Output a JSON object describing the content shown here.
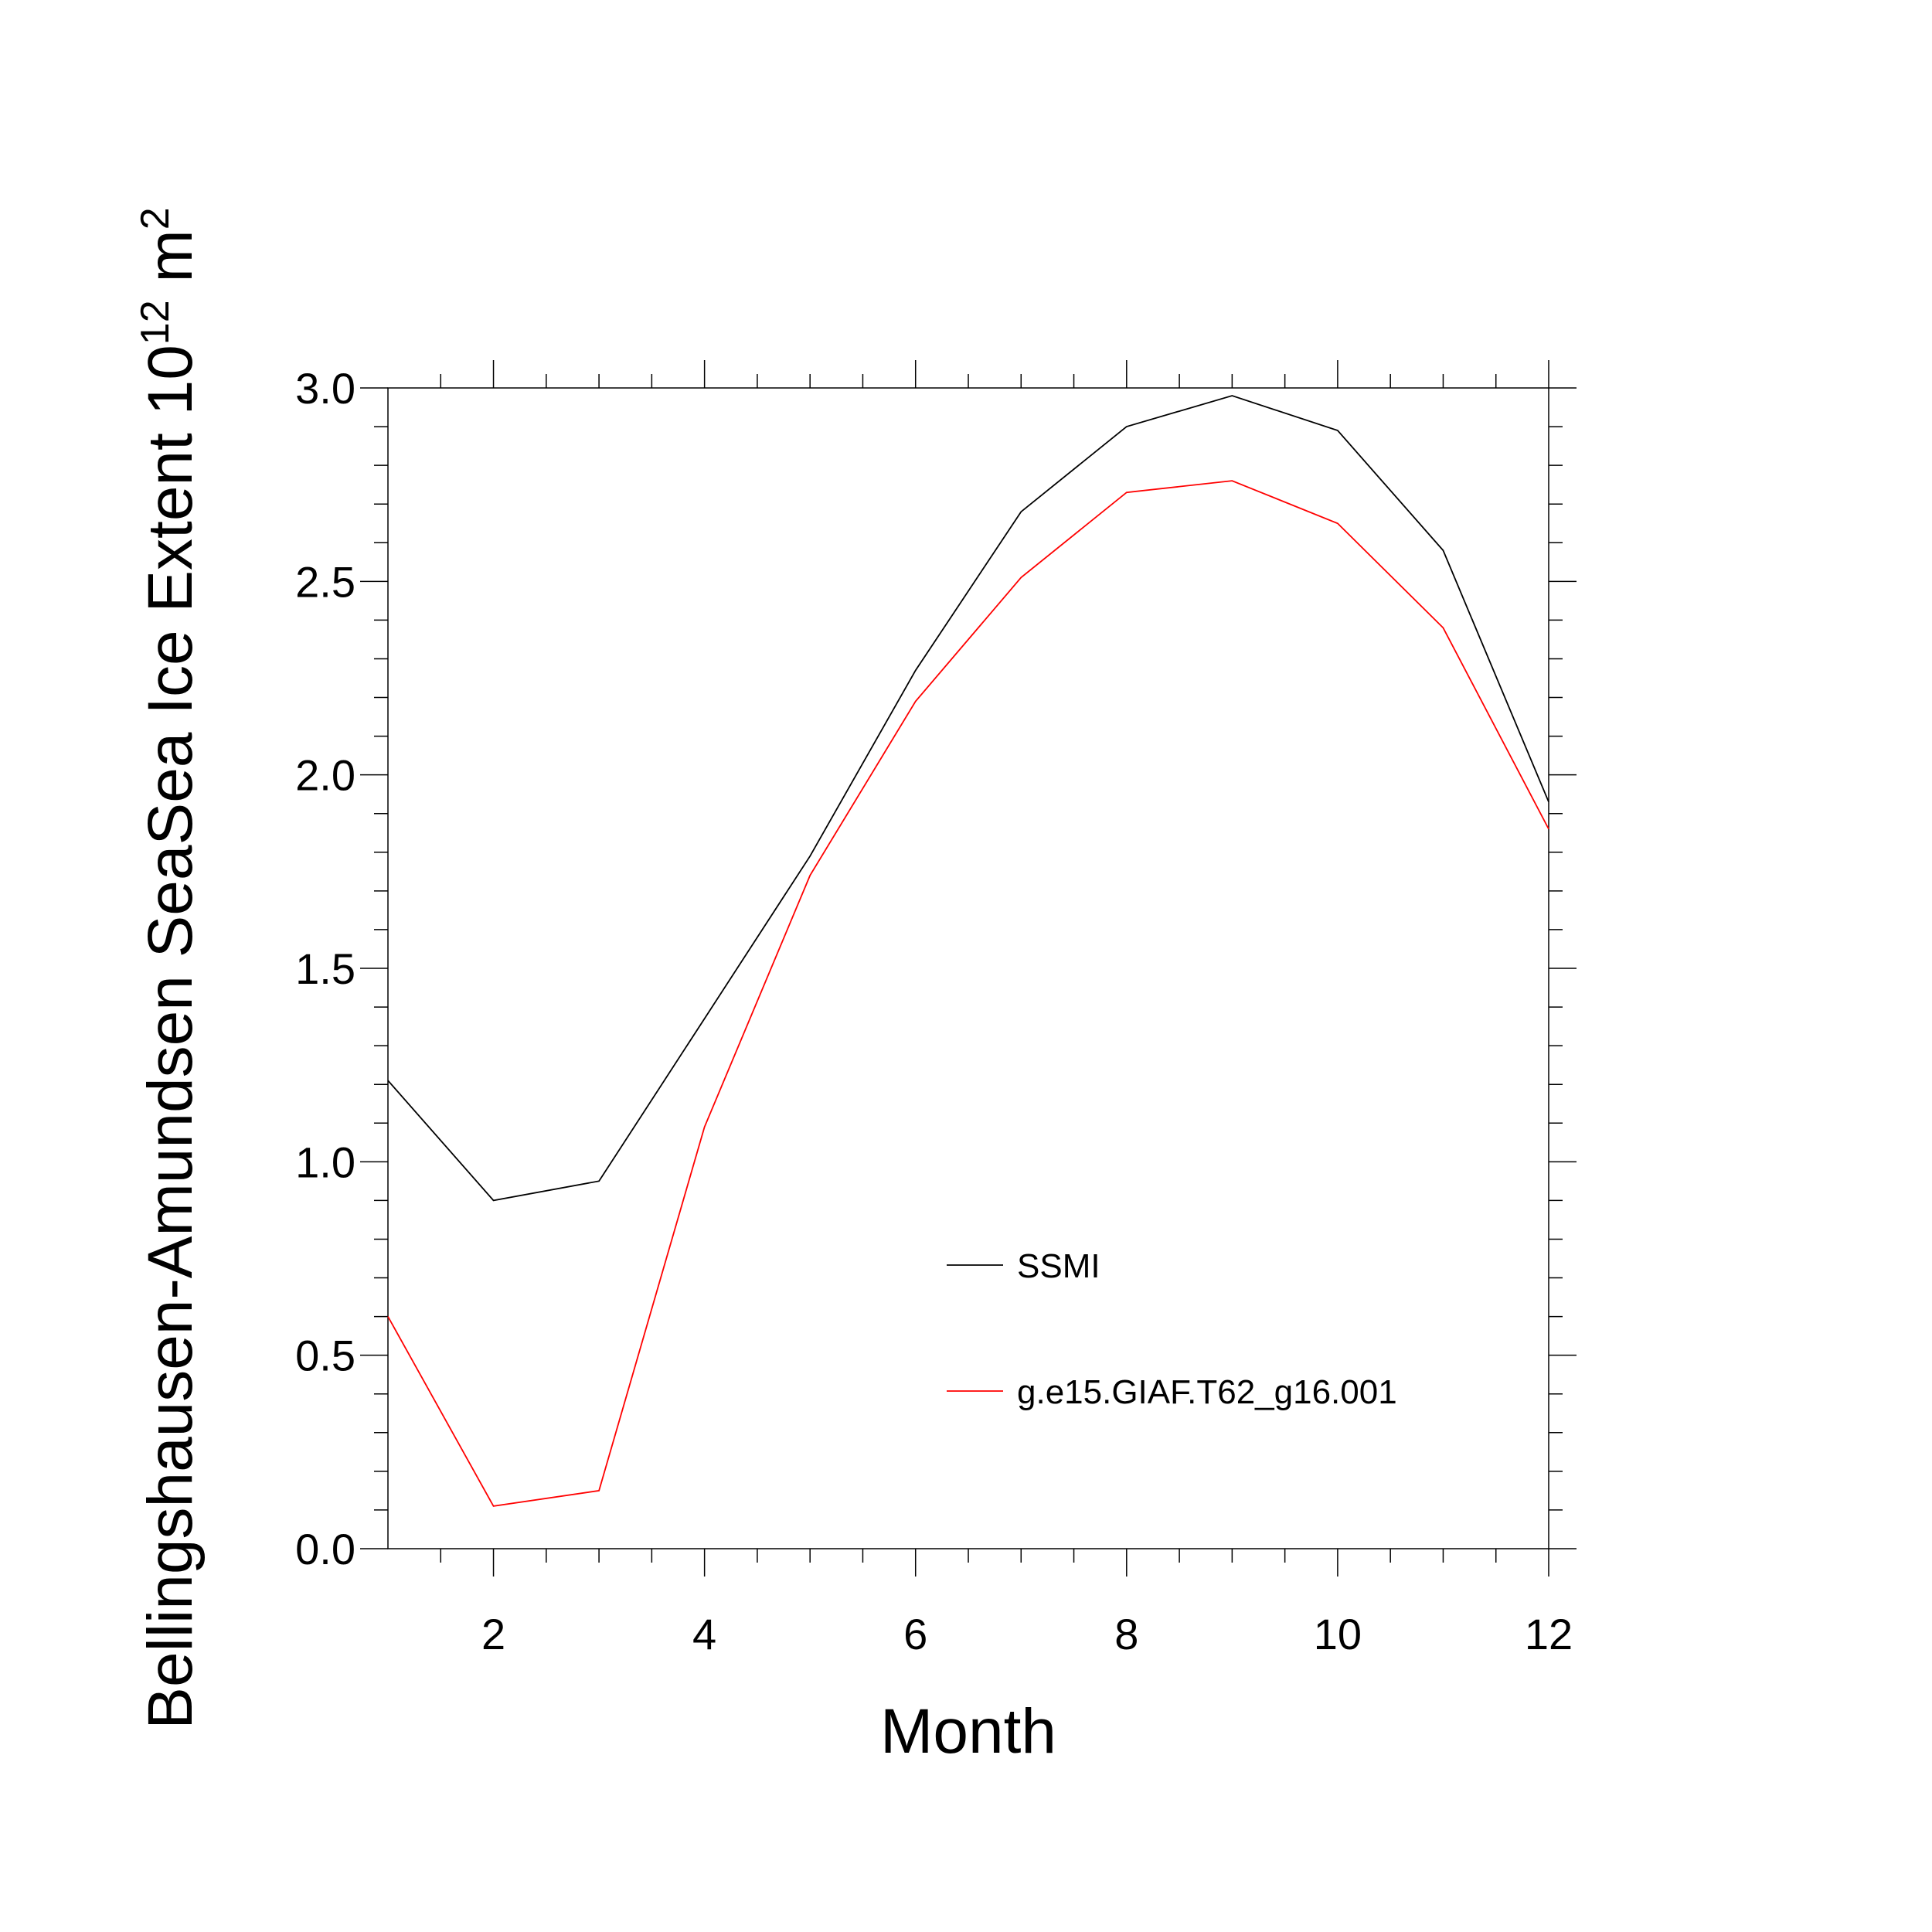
{
  "chart_data": {
    "type": "line",
    "x": [
      1,
      2,
      3,
      4,
      5,
      6,
      7,
      8,
      9,
      10,
      11,
      12
    ],
    "series": [
      {
        "name": "SSMI",
        "color": "#000000",
        "values": [
          1.21,
          0.9,
          0.95,
          1.37,
          1.79,
          2.27,
          2.68,
          2.9,
          2.98,
          2.89,
          2.58,
          1.93
        ]
      },
      {
        "name": "g.e15.GIAF.T62_g16.001",
        "color": "#ff0000",
        "values": [
          0.6,
          0.11,
          0.15,
          1.09,
          1.74,
          2.19,
          2.51,
          2.73,
          2.76,
          2.65,
          2.38,
          1.86
        ]
      }
    ],
    "xlabel": "Month",
    "ylabel": "Bellingshausen-Amundsen SeaSea Ice Extent 10",
    "ylabel_sup": "12",
    "ylabel_unit": "m",
    "ylabel_unit_sup": "2",
    "xlim": [
      1,
      12
    ],
    "ylim": [
      0,
      3
    ],
    "x_major_ticks": [
      2,
      4,
      6,
      8,
      10,
      12
    ],
    "x_tick_labels": [
      "2",
      "4",
      "6",
      "8",
      "10",
      "12"
    ],
    "x_minor_ticks": [
      1.5,
      2.5,
      3,
      3.5,
      4.5,
      5,
      5.5,
      6.5,
      7,
      7.5,
      8.5,
      9,
      9.5,
      10.5,
      11,
      11.5
    ],
    "y_major_ticks": [
      0,
      0.5,
      1.0,
      1.5,
      2.0,
      2.5,
      3.0
    ],
    "y_tick_labels": [
      "0.0",
      "0.5",
      "1.0",
      "1.5",
      "2.0",
      "2.5",
      "3.0"
    ],
    "y_minor_step": 0.1,
    "grid": false,
    "legend_position": "center-right inside plot"
  }
}
